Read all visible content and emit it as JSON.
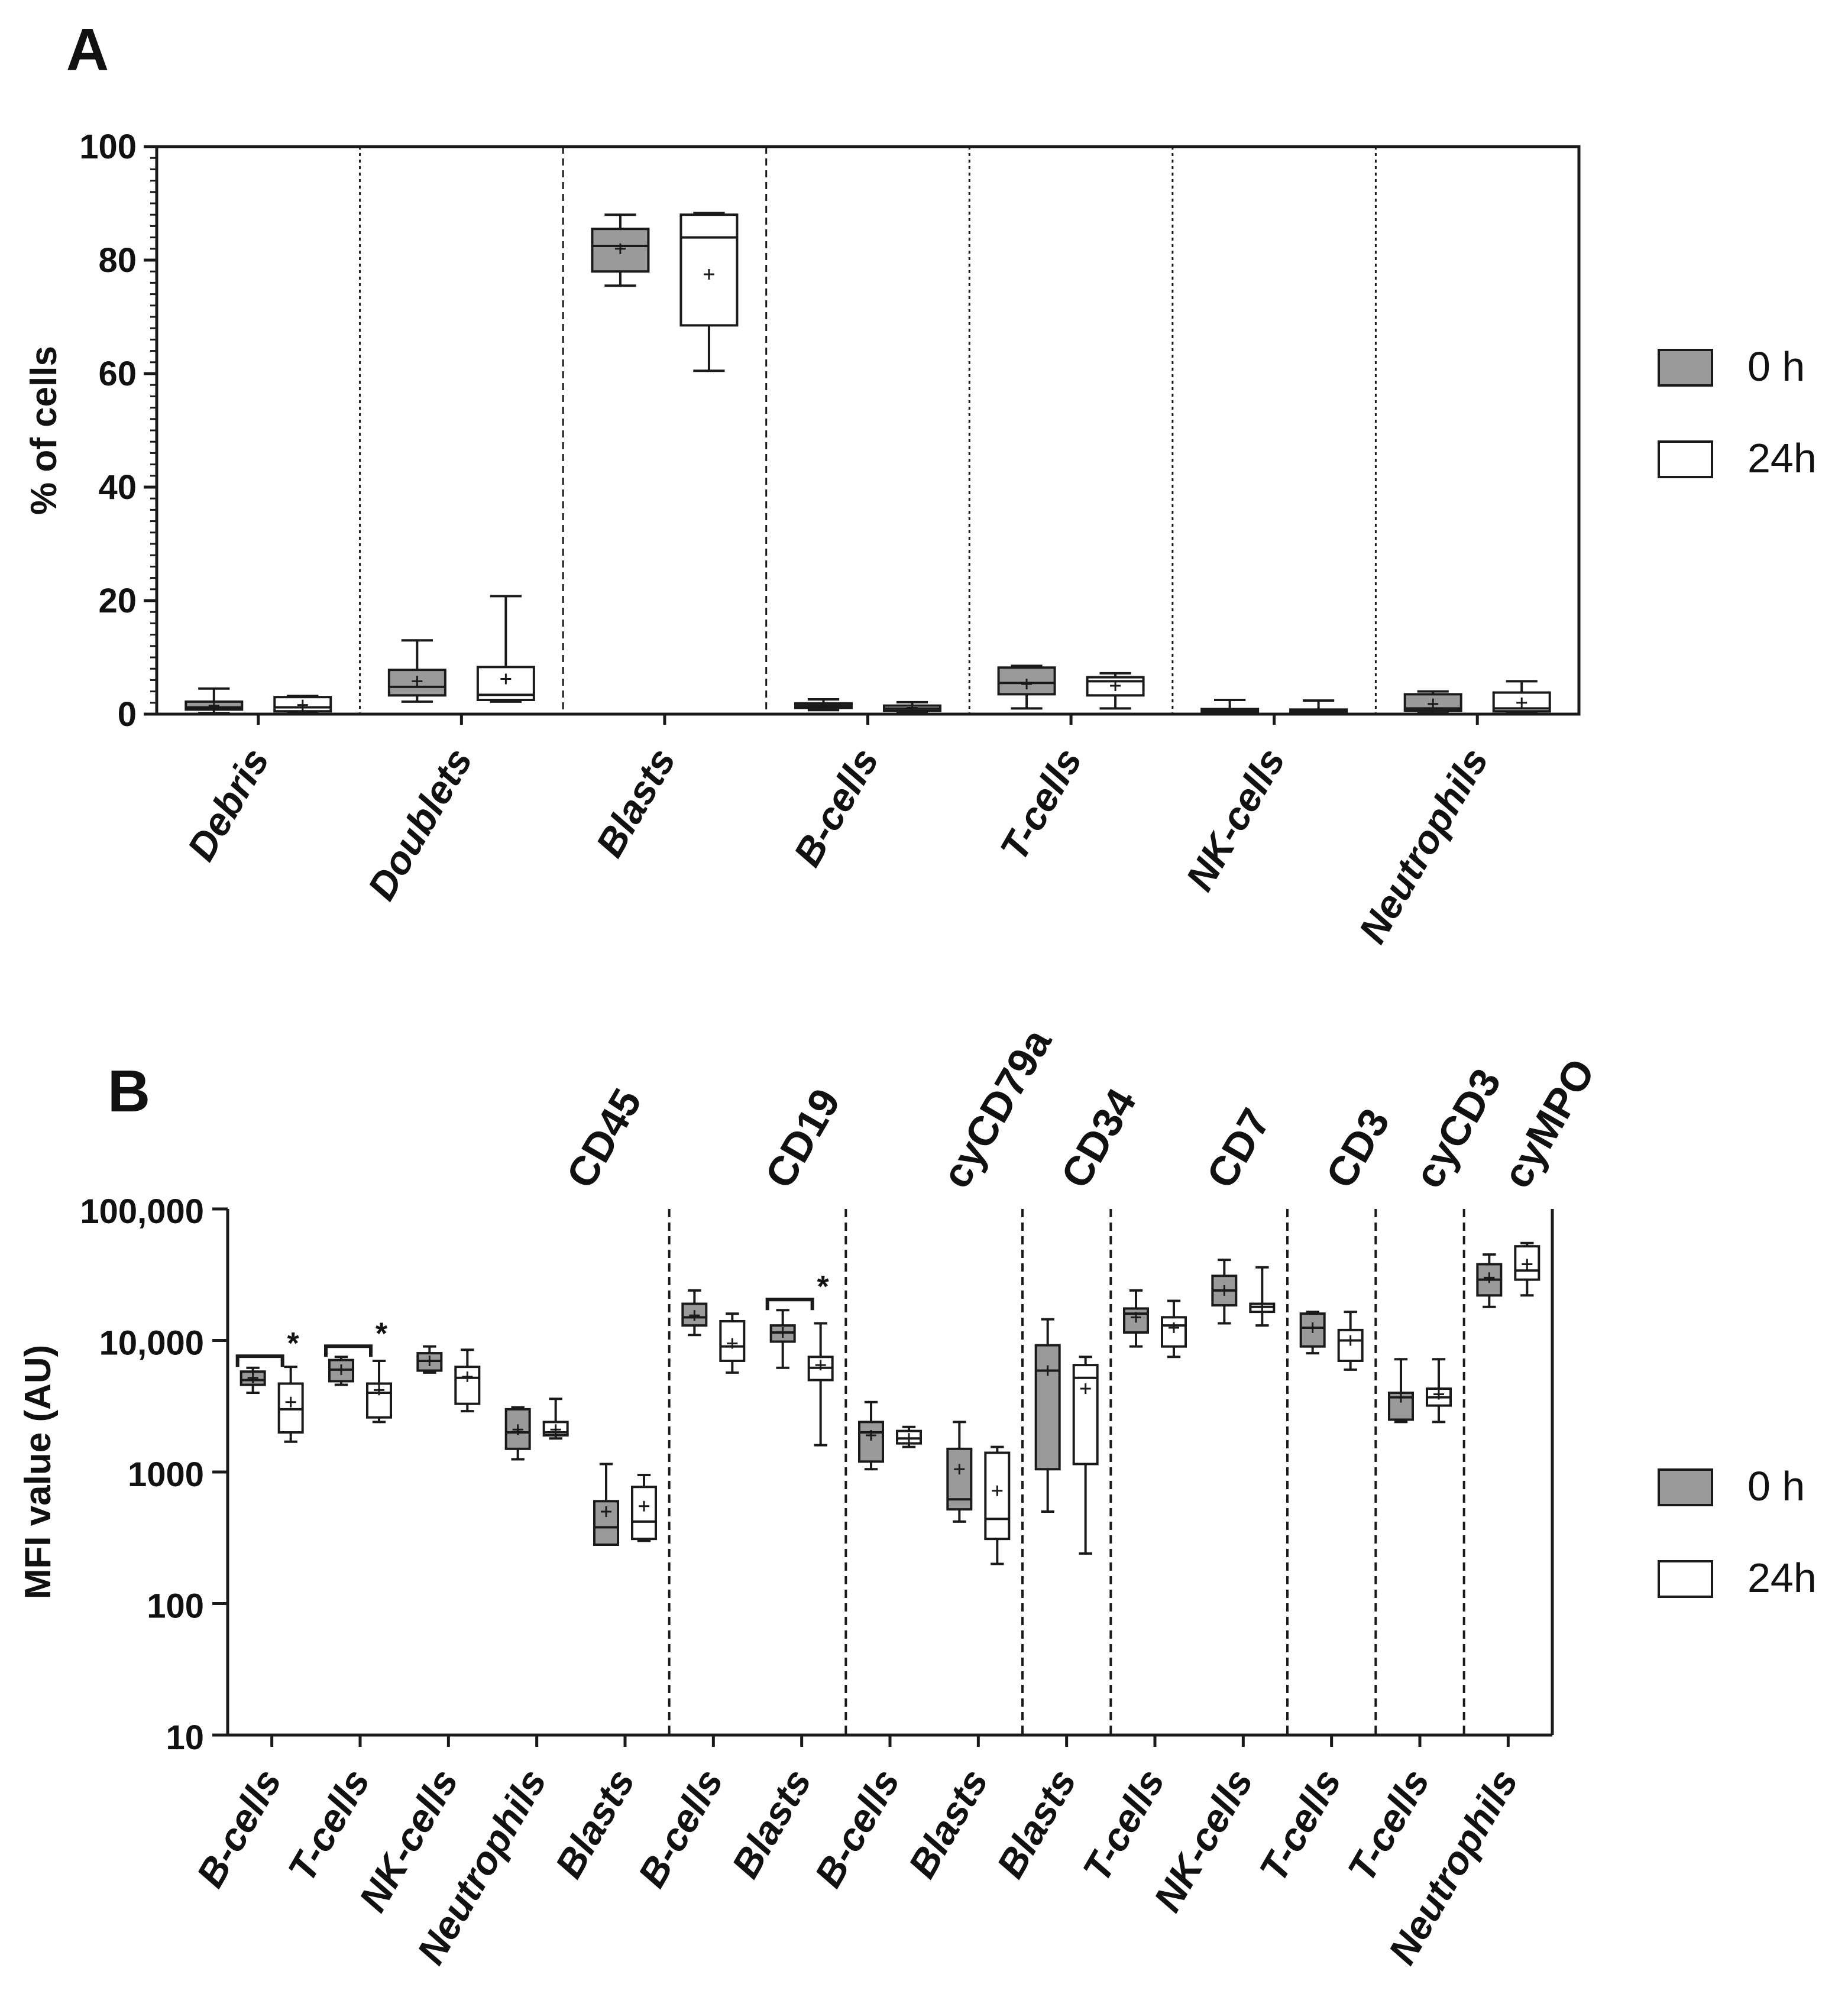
{
  "colors": {
    "h0": "#9a9a9a",
    "h24": "#ffffff",
    "stroke": "#1a1a1a"
  },
  "chart_data": [
    {
      "id": "A",
      "type": "box",
      "panel_label": "A",
      "ylabel": "% of cells",
      "xlabel": "",
      "ylim": [
        0,
        100
      ],
      "yticks": [
        "0",
        "20",
        "40",
        "60",
        "80",
        "100"
      ],
      "legend": [
        "0 h",
        "24h"
      ],
      "legend_position": "right",
      "categories": [
        "Debris",
        "Doublets",
        "Blasts",
        "B-cells",
        "T-cells",
        "NK-cells",
        "Neutrophils"
      ],
      "series": [
        {
          "name": "0 h",
          "boxes": [
            {
              "min": 0.2,
              "q1": 0.8,
              "median": 1.2,
              "q3": 2.2,
              "max": 4.5,
              "mean": 1.5
            },
            {
              "min": 2.2,
              "q1": 3.3,
              "median": 4.8,
              "q3": 7.8,
              "max": 13.0,
              "mean": 5.8
            },
            {
              "min": 75.5,
              "q1": 78.0,
              "median": 82.5,
              "q3": 85.5,
              "max": 88.0,
              "mean": 82.0
            },
            {
              "min": 0.7,
              "q1": 1.1,
              "median": 1.5,
              "q3": 1.9,
              "max": 2.6,
              "mean": 1.5
            },
            {
              "min": 1.0,
              "q1": 3.5,
              "median": 5.5,
              "q3": 8.2,
              "max": 8.5,
              "mean": 5.3
            },
            {
              "min": 0.1,
              "q1": 0.3,
              "median": 0.6,
              "q3": 0.9,
              "max": 2.5,
              "mean": 0.8
            },
            {
              "min": 0.2,
              "q1": 0.6,
              "median": 1.0,
              "q3": 3.5,
              "max": 4.0,
              "mean": 1.8
            }
          ]
        },
        {
          "name": "24h",
          "boxes": [
            {
              "min": 0.2,
              "q1": 0.5,
              "median": 1.2,
              "q3": 3.0,
              "max": 3.2,
              "mean": 1.6
            },
            {
              "min": 2.2,
              "q1": 2.5,
              "median": 3.4,
              "q3": 8.3,
              "max": 20.8,
              "mean": 6.2
            },
            {
              "min": 60.5,
              "q1": 68.5,
              "median": 84.0,
              "q3": 88.0,
              "max": 88.3,
              "mean": 77.5
            },
            {
              "min": 0.4,
              "q1": 0.6,
              "median": 1.0,
              "q3": 1.5,
              "max": 2.1,
              "mean": 1.1
            },
            {
              "min": 1.0,
              "q1": 3.3,
              "median": 5.8,
              "q3": 6.5,
              "max": 7.2,
              "mean": 5.0
            },
            {
              "min": 0.1,
              "q1": 0.2,
              "median": 0.5,
              "q3": 0.8,
              "max": 2.4,
              "mean": 0.7
            },
            {
              "min": 0.2,
              "q1": 0.5,
              "median": 1.0,
              "q3": 3.8,
              "max": 5.8,
              "mean": 2.0
            }
          ]
        }
      ]
    },
    {
      "id": "B",
      "type": "box",
      "panel_label": "B",
      "ylabel": "MFI value (AU)",
      "xlabel": "",
      "yscale": "log",
      "ylim": [
        10,
        100000
      ],
      "yticks": [
        "10",
        "100",
        "1000",
        "10,000",
        "100,000"
      ],
      "legend": [
        "0 h",
        "24h"
      ],
      "legend_position": "right",
      "markers": [
        "CD45",
        "CD19",
        "cyCD79a",
        "CD34",
        "CD7",
        "CD3",
        "cyCD3",
        "cyMPO"
      ],
      "categories": [
        "B-cells",
        "T-cells",
        "NK-cells",
        "Neutrophils",
        "Blasts",
        "B-cells",
        "Blasts",
        "B-cells",
        "Blasts",
        "Blasts",
        "T-cells",
        "NK-cells",
        "T-cells",
        "T-cells",
        "Neutrophils"
      ],
      "groups": [
        {
          "marker": "CD45",
          "start": 0,
          "end": 4
        },
        {
          "marker": "CD19",
          "start": 5,
          "end": 6
        },
        {
          "marker": "cyCD79a",
          "start": 7,
          "end": 8
        },
        {
          "marker": "CD34",
          "start": 9,
          "end": 9
        },
        {
          "marker": "CD7",
          "start": 10,
          "end": 11
        },
        {
          "marker": "CD3",
          "start": 12,
          "end": 12
        },
        {
          "marker": "cyCD3",
          "start": 13,
          "end": 13
        },
        {
          "marker": "cyMPO",
          "start": 14,
          "end": 14
        }
      ],
      "significance": [
        {
          "category_index": 0,
          "label": "*"
        },
        {
          "category_index": 1,
          "label": "*"
        },
        {
          "category_index": 6,
          "label": "*"
        }
      ],
      "series": [
        {
          "name": "0 h",
          "boxes": [
            {
              "min": 4000,
              "q1": 4600,
              "median": 5000,
              "q3": 5800,
              "max": 6200,
              "mean": 5200
            },
            {
              "min": 4600,
              "q1": 4900,
              "median": 6000,
              "q3": 7100,
              "max": 7500,
              "mean": 6000
            },
            {
              "min": 5700,
              "q1": 5900,
              "median": 7000,
              "q3": 8000,
              "max": 9000,
              "mean": 7000
            },
            {
              "min": 1250,
              "q1": 1500,
              "median": 2000,
              "q3": 3000,
              "max": 3100,
              "mean": 2100
            },
            {
              "min": 280,
              "q1": 280,
              "median": 380,
              "q3": 600,
              "max": 1150,
              "mean": 500
            },
            {
              "min": 11000,
              "q1": 13000,
              "median": 15000,
              "q3": 19000,
              "max": 24000,
              "mean": 15500
            },
            {
              "min": 6200,
              "q1": 9800,
              "median": 11500,
              "q3": 13000,
              "max": 17000,
              "mean": 11500
            },
            {
              "min": 1050,
              "q1": 1200,
              "median": 2000,
              "q3": 2400,
              "max": 3400,
              "mean": 1900
            },
            {
              "min": 420,
              "q1": 520,
              "median": 620,
              "q3": 1500,
              "max": 2400,
              "mean": 1050
            },
            {
              "min": 500,
              "q1": 1050,
              "median": 5900,
              "q3": 9200,
              "max": 14500,
              "mean": 5900
            },
            {
              "min": 9000,
              "q1": 11500,
              "median": 16000,
              "q3": 17500,
              "max": 24000,
              "mean": 15000
            },
            {
              "min": 13500,
              "q1": 18500,
              "median": 24000,
              "q3": 31000,
              "max": 41000,
              "mean": 24000
            },
            {
              "min": 8000,
              "q1": 9000,
              "median": 12500,
              "q3": 16000,
              "max": 16500,
              "mean": 12500
            },
            {
              "min": 2400,
              "q1": 2500,
              "median": 3700,
              "q3": 4000,
              "max": 7200,
              "mean": 3700
            },
            {
              "min": 18000,
              "q1": 22000,
              "median": 29000,
              "q3": 38000,
              "max": 45000,
              "mean": 30000
            }
          ]
        },
        {
          "name": "24h",
          "boxes": [
            {
              "min": 1700,
              "q1": 2000,
              "median": 3000,
              "q3": 4700,
              "max": 6300,
              "mean": 3400
            },
            {
              "min": 2400,
              "q1": 2600,
              "median": 4000,
              "q3": 4700,
              "max": 7000,
              "mean": 4200
            },
            {
              "min": 2900,
              "q1": 3300,
              "median": 5200,
              "q3": 6300,
              "max": 8500,
              "mean": 5300
            },
            {
              "min": 1800,
              "q1": 1900,
              "median": 2000,
              "q3": 2400,
              "max": 3600,
              "mean": 2100
            },
            {
              "min": 300,
              "q1": 310,
              "median": 420,
              "q3": 770,
              "max": 950,
              "mean": 550
            },
            {
              "min": 5700,
              "q1": 7000,
              "median": 9000,
              "q3": 14000,
              "max": 16000,
              "mean": 9500
            },
            {
              "min": 1600,
              "q1": 5000,
              "median": 6200,
              "q3": 7500,
              "max": 13500,
              "mean": 6500
            },
            {
              "min": 1550,
              "q1": 1650,
              "median": 1800,
              "q3": 2050,
              "max": 2200,
              "mean": 1800
            },
            {
              "min": 200,
              "q1": 310,
              "median": 440,
              "q3": 1400,
              "max": 1550,
              "mean": 720
            },
            {
              "min": 240,
              "q1": 1150,
              "median": 5200,
              "q3": 6500,
              "max": 7500,
              "mean": 4300
            },
            {
              "min": 7500,
              "q1": 9000,
              "median": 13000,
              "q3": 15000,
              "max": 20000,
              "mean": 12500
            },
            {
              "min": 13000,
              "q1": 16500,
              "median": 18000,
              "q3": 19000,
              "max": 36000,
              "mean": 18000
            },
            {
              "min": 6000,
              "q1": 7000,
              "median": 10000,
              "q3": 12000,
              "max": 16500,
              "mean": 10000
            },
            {
              "min": 2400,
              "q1": 3200,
              "median": 3700,
              "q3": 4300,
              "max": 7200,
              "mean": 3900
            },
            {
              "min": 22000,
              "q1": 29000,
              "median": 34000,
              "q3": 52000,
              "max": 55000,
              "mean": 38000
            }
          ]
        }
      ]
    }
  ]
}
